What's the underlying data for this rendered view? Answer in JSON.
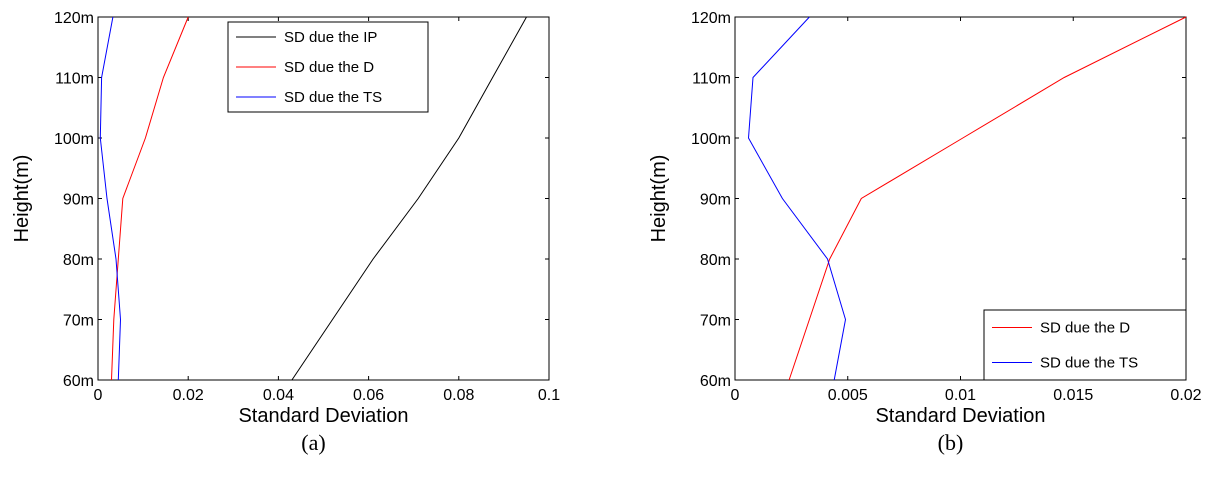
{
  "chart_data": [
    {
      "type": "line",
      "caption": "(a)",
      "xlabel": "Standard Deviation",
      "ylabel": "Height(m)",
      "xlim": [
        0,
        0.1
      ],
      "ylim": [
        60,
        120
      ],
      "xticks": [
        0,
        0.02,
        0.04,
        0.06,
        0.08,
        0.1
      ],
      "xtick_labels": [
        "0",
        "0.02",
        "0.04",
        "0.06",
        "0.08",
        "0.1"
      ],
      "yticks": [
        60,
        70,
        80,
        90,
        100,
        110,
        120
      ],
      "ytick_labels": [
        "60m",
        "70m",
        "80m",
        "90m",
        "100m",
        "110m",
        "120m"
      ],
      "legend_position": "top-right",
      "series": [
        {
          "name": "SD due the IP",
          "color": "#000000",
          "points": [
            [
              0.043,
              60
            ],
            [
              0.052,
              70
            ],
            [
              0.061,
              80
            ],
            [
              0.071,
              90
            ],
            [
              0.08,
              100
            ],
            [
              0.0875,
              110
            ],
            [
              0.095,
              120
            ]
          ]
        },
        {
          "name": "SD due the D",
          "color": "#ff0000",
          "points": [
            [
              0.003,
              60
            ],
            [
              0.0035,
              70
            ],
            [
              0.0045,
              80
            ],
            [
              0.0055,
              90
            ],
            [
              0.0105,
              100
            ],
            [
              0.0145,
              110
            ],
            [
              0.02,
              120
            ]
          ]
        },
        {
          "name": "SD due the TS",
          "color": "#0000ff",
          "points": [
            [
              0.0045,
              60
            ],
            [
              0.005,
              70
            ],
            [
              0.004,
              80
            ],
            [
              0.002,
              90
            ],
            [
              0.0005,
              100
            ],
            [
              0.0008,
              110
            ],
            [
              0.0033,
              120
            ]
          ]
        }
      ]
    },
    {
      "type": "line",
      "caption": "(b)",
      "xlabel": "Standard Deviation",
      "ylabel": "Height(m)",
      "xlim": [
        0,
        0.02
      ],
      "ylim": [
        60,
        120
      ],
      "xticks": [
        0,
        0.005,
        0.01,
        0.015,
        0.02
      ],
      "xtick_labels": [
        "0",
        "0.005",
        "0.01",
        "0.015",
        "0.02"
      ],
      "yticks": [
        60,
        70,
        80,
        90,
        100,
        110,
        120
      ],
      "ytick_labels": [
        "60m",
        "70m",
        "80m",
        "90m",
        "100m",
        "110m",
        "120m"
      ],
      "legend_position": "bottom-right",
      "series": [
        {
          "name": "SD due the D",
          "color": "#ff0000",
          "points": [
            [
              0.0024,
              60
            ],
            [
              0.0033,
              70
            ],
            [
              0.0042,
              80
            ],
            [
              0.0056,
              90
            ],
            [
              0.0101,
              100
            ],
            [
              0.0146,
              110
            ],
            [
              0.02,
              120
            ]
          ]
        },
        {
          "name": "SD due the TS",
          "color": "#0000ff",
          "points": [
            [
              0.0044,
              60
            ],
            [
              0.0049,
              70
            ],
            [
              0.0041,
              80
            ],
            [
              0.0021,
              90
            ],
            [
              0.0006,
              100
            ],
            [
              0.0008,
              110
            ],
            [
              0.0033,
              120
            ]
          ]
        }
      ]
    }
  ]
}
